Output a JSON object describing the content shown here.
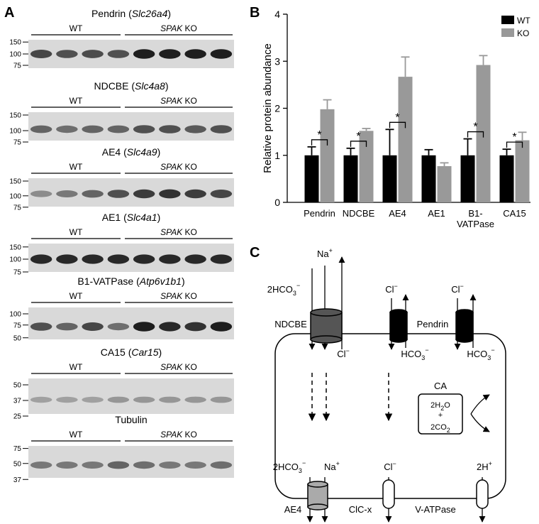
{
  "panel_a": {
    "label": "A",
    "blots": [
      {
        "title": [
          "Pendrin (",
          "Slc26a4",
          ")"
        ],
        "wt": "WT",
        "ko": [
          "SPAK",
          " KO"
        ],
        "ticks": [
          150,
          100,
          75
        ]
      },
      {
        "title": [
          "NDCBE (",
          "Slc4a8",
          ")"
        ],
        "wt": "WT",
        "ko": [
          "SPAK",
          " KO"
        ],
        "ticks": [
          150,
          100,
          75
        ]
      },
      {
        "title": [
          "AE4 (",
          "Slc4a9",
          ")"
        ],
        "wt": "WT",
        "ko": [
          "SPAK",
          " KO"
        ],
        "ticks": [
          150,
          100,
          75
        ]
      },
      {
        "title": [
          "AE1 (",
          "Slc4a1",
          ")"
        ],
        "wt": "WT",
        "ko": [
          "SPAK",
          " KO"
        ],
        "ticks": [
          150,
          100,
          75
        ]
      },
      {
        "title": [
          "B1-VATPase (",
          "Atp6v1b1",
          ")"
        ],
        "wt": "WT",
        "ko": [
          "SPAK",
          " KO"
        ],
        "ticks": [
          100,
          75,
          50
        ]
      },
      {
        "title": [
          "CA15 (",
          "Car15",
          ")"
        ],
        "wt": "WT",
        "ko": [
          "SPAK",
          " KO"
        ],
        "ticks": [
          50,
          37,
          25
        ]
      },
      {
        "title": [
          "Tubulin"
        ],
        "wt": "WT",
        "ko": [
          "SPAK",
          " KO"
        ],
        "ticks": [
          75,
          50,
          37
        ]
      }
    ]
  },
  "chart_data": {
    "type": "bar",
    "label": "B",
    "y_label": "Relative protein abundance",
    "categories": [
      "Pendrin",
      "NDCBE",
      "AE4",
      "AE1",
      "B1-VATPase",
      "CA15"
    ],
    "series": [
      {
        "name": "WT",
        "color": "#000000",
        "values": [
          1,
          1,
          1,
          1,
          1,
          1
        ],
        "errors": [
          0.18,
          0.15,
          0.55,
          0.12,
          0.35,
          0.13
        ]
      },
      {
        "name": "KO",
        "color": "#999999",
        "values": [
          1.98,
          1.52,
          2.67,
          0.77,
          2.92,
          1.32
        ],
        "errors": [
          0.2,
          0.05,
          0.42,
          0.07,
          0.2,
          0.17
        ]
      }
    ],
    "significance": [
      "*",
      "*",
      "*",
      null,
      "*",
      "*"
    ],
    "ylim": [
      0,
      4
    ],
    "yticks": [
      0,
      1,
      2,
      3,
      4
    ],
    "legend": "upper-right"
  },
  "panel_c": {
    "label": "C",
    "labels": [
      {
        "text": "2HCO",
        "sub": "3",
        "sup": "−"
      },
      {
        "text": "Na",
        "sup": "+"
      },
      {
        "text": "Cl",
        "sup": "−"
      },
      {
        "text": "Cl",
        "sup": "−"
      },
      {
        "text": "NDCBE"
      },
      {
        "text": "Pendrin"
      },
      {
        "text": "Cl",
        "sup": "−"
      },
      {
        "text": "HCO",
        "sub": "3",
        "sup": "−"
      },
      {
        "text": "HCO",
        "sub": "3",
        "sup": "−"
      },
      {
        "text": "CA"
      },
      {
        "text": "2H",
        "sub": "2",
        "after": "O"
      },
      {
        "text": "+"
      },
      {
        "text": "2CO",
        "sub": "2"
      },
      {
        "text": "2HCO",
        "sub": "3",
        "sup": "−"
      },
      {
        "text": "Na",
        "sup": "+"
      },
      {
        "text": "Cl",
        "sup": "−"
      },
      {
        "text": "2H",
        "sup": "+"
      },
      {
        "text": "AE4"
      },
      {
        "text": "ClC-x"
      },
      {
        "text": "V-ATPase"
      }
    ]
  }
}
